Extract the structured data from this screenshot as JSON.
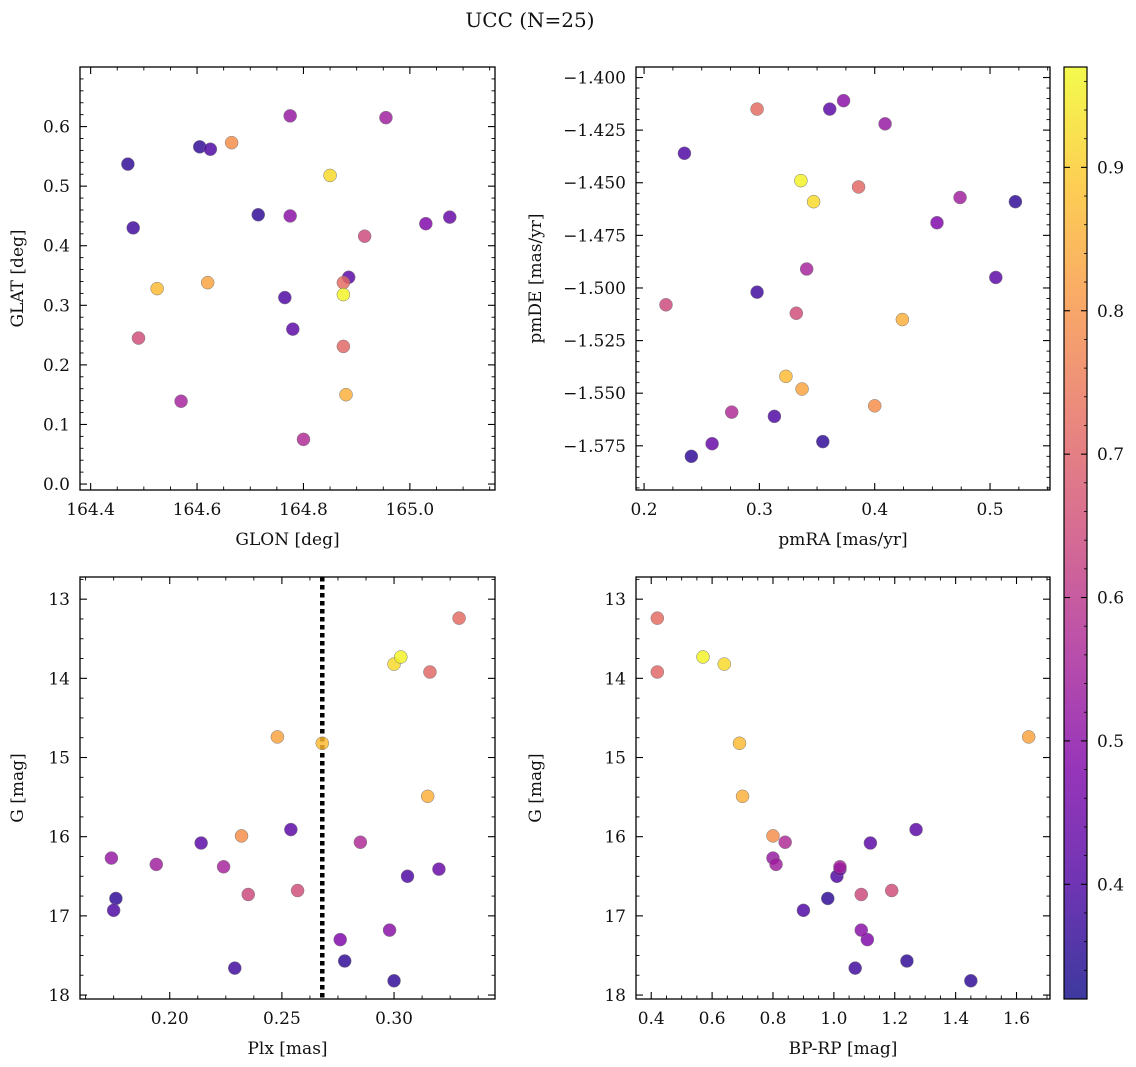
{
  "figure": {
    "title": "UCC (N=25)"
  },
  "chart_data": [
    {
      "type": "scatter",
      "xlabel": "GLON [deg]",
      "ylabel": "GLAT [deg]",
      "xlim": [
        164.38,
        165.16
      ],
      "ylim": [
        -0.01,
        0.7
      ],
      "xticks": [
        "164.4",
        "164.6",
        "164.8",
        "165.0"
      ],
      "yticks": [
        "0.0",
        "0.1",
        "0.2",
        "0.3",
        "0.4",
        "0.5",
        "0.6"
      ]
    },
    {
      "type": "scatter",
      "xlabel": "pmRA [mas/yr]",
      "ylabel": "pmDE [mas/yr]",
      "xlim": [
        0.193,
        0.552
      ],
      "ylim": [
        -1.596,
        -1.395
      ],
      "xticks": [
        "0.2",
        "0.3",
        "0.4",
        "0.5"
      ],
      "yticks": [
        "−1.400",
        "−1.425",
        "−1.450",
        "−1.475",
        "−1.500",
        "−1.525",
        "−1.550",
        "−1.575"
      ]
    },
    {
      "type": "scatter",
      "xlabel": "Plx [mas]",
      "ylabel": "G [mag]",
      "xlim": [
        0.16,
        0.345
      ],
      "ylim": [
        18.05,
        12.72
      ],
      "y_inverted": true,
      "reference_line": {
        "x": 0.268,
        "style": "dotted",
        "color": "#000000"
      },
      "xticks": [
        "0.20",
        "0.25",
        "0.30"
      ],
      "yticks": [
        "13",
        "14",
        "15",
        "16",
        "17",
        "18"
      ]
    },
    {
      "type": "scatter",
      "xlabel": "BP-RP [mag]",
      "ylabel": "G [mag]",
      "xlim": [
        0.35,
        1.71
      ],
      "ylim": [
        18.05,
        12.72
      ],
      "y_inverted": true,
      "xticks": [
        "0.4",
        "0.6",
        "0.8",
        "1.0",
        "1.2",
        "1.4",
        "1.6"
      ],
      "yticks": [
        "13",
        "14",
        "15",
        "16",
        "17",
        "18"
      ]
    }
  ],
  "stars": [
    {
      "glon": 164.47,
      "glat": 0.537,
      "pmra": 0.241,
      "pmde": -1.58,
      "plx": 0.176,
      "bprp": 0.98,
      "g": 16.78,
      "c": 0.36
    },
    {
      "glon": 164.48,
      "glat": 0.43,
      "pmra": 0.298,
      "pmde": -1.502,
      "plx": 0.229,
      "bprp": 1.07,
      "g": 17.66,
      "c": 0.38
    },
    {
      "glon": 164.605,
      "glat": 0.566,
      "pmra": 0.355,
      "pmde": -1.573,
      "plx": 0.3,
      "bprp": 1.45,
      "g": 17.82,
      "c": 0.36
    },
    {
      "glon": 164.625,
      "glat": 0.562,
      "pmra": 0.235,
      "pmde": -1.436,
      "plx": 0.175,
      "bprp": 0.9,
      "g": 16.93,
      "c": 0.4
    },
    {
      "glon": 164.715,
      "glat": 0.452,
      "pmra": 0.522,
      "pmde": -1.459,
      "plx": 0.278,
      "bprp": 1.24,
      "g": 17.57,
      "c": 0.36
    },
    {
      "glon": 164.765,
      "glat": 0.313,
      "pmra": 0.313,
      "pmde": -1.561,
      "plx": 0.306,
      "bprp": 1.01,
      "g": 16.5,
      "c": 0.4
    },
    {
      "glon": 164.78,
      "glat": 0.26,
      "pmra": 0.505,
      "pmde": -1.495,
      "plx": 0.214,
      "bprp": 1.12,
      "g": 16.08,
      "c": 0.42
    },
    {
      "glon": 164.885,
      "glat": 0.347,
      "pmra": 0.361,
      "pmde": -1.415,
      "plx": 0.254,
      "bprp": 1.27,
      "g": 15.91,
      "c": 0.42
    },
    {
      "glon": 165.075,
      "glat": 0.448,
      "pmra": 0.259,
      "pmde": -1.574,
      "plx": 0.32,
      "bprp": 1.02,
      "g": 16.41,
      "c": 0.44
    },
    {
      "glon": 165.03,
      "glat": 0.437,
      "pmra": 0.454,
      "pmde": -1.469,
      "plx": 0.276,
      "bprp": 1.11,
      "g": 17.3,
      "c": 0.48
    },
    {
      "glon": 164.775,
      "glat": 0.45,
      "pmra": 0.373,
      "pmde": -1.411,
      "plx": 0.298,
      "bprp": 1.09,
      "g": 17.18,
      "c": 0.5
    },
    {
      "glon": 164.775,
      "glat": 0.618,
      "pmra": 0.409,
      "pmde": -1.422,
      "plx": 0.174,
      "bprp": 0.8,
      "g": 16.27,
      "c": 0.52
    },
    {
      "glon": 164.955,
      "glat": 0.615,
      "pmra": 0.474,
      "pmde": -1.457,
      "plx": 0.194,
      "bprp": 0.81,
      "g": 16.35,
      "c": 0.54
    },
    {
      "glon": 164.57,
      "glat": 0.139,
      "pmra": 0.341,
      "pmde": -1.491,
      "plx": 0.224,
      "bprp": 1.02,
      "g": 16.38,
      "c": 0.55
    },
    {
      "glon": 164.8,
      "glat": 0.075,
      "pmra": 0.276,
      "pmde": -1.559,
      "plx": 0.285,
      "bprp": 0.84,
      "g": 16.07,
      "c": 0.57
    },
    {
      "glon": 164.915,
      "glat": 0.416,
      "pmra": 0.219,
      "pmde": -1.508,
      "plx": 0.235,
      "bprp": 1.09,
      "g": 16.73,
      "c": 0.64
    },
    {
      "glon": 164.49,
      "glat": 0.245,
      "pmra": 0.332,
      "pmde": -1.512,
      "plx": 0.257,
      "bprp": 1.19,
      "g": 16.68,
      "c": 0.65
    },
    {
      "glon": 164.875,
      "glat": 0.231,
      "pmra": 0.386,
      "pmde": -1.452,
      "plx": 0.316,
      "bprp": 0.42,
      "g": 13.92,
      "c": 0.71
    },
    {
      "glon": 164.875,
      "glat": 0.338,
      "pmra": 0.298,
      "pmde": -1.415,
      "plx": 0.329,
      "bprp": 0.42,
      "g": 13.24,
      "c": 0.72
    },
    {
      "glon": 164.665,
      "glat": 0.573,
      "pmra": 0.4,
      "pmde": -1.556,
      "plx": 0.232,
      "bprp": 0.8,
      "g": 15.99,
      "c": 0.79
    },
    {
      "glon": 164.62,
      "glat": 0.338,
      "pmra": 0.337,
      "pmde": -1.548,
      "plx": 0.248,
      "bprp": 1.64,
      "g": 14.74,
      "c": 0.83
    },
    {
      "glon": 164.88,
      "glat": 0.15,
      "pmra": 0.424,
      "pmde": -1.515,
      "plx": 0.315,
      "bprp": 0.7,
      "g": 15.49,
      "c": 0.85
    },
    {
      "glon": 164.525,
      "glat": 0.328,
      "pmra": 0.323,
      "pmde": -1.542,
      "plx": 0.268,
      "bprp": 0.69,
      "g": 14.82,
      "c": 0.87
    },
    {
      "glon": 164.85,
      "glat": 0.518,
      "pmra": 0.347,
      "pmde": -1.459,
      "plx": 0.3,
      "bprp": 0.64,
      "g": 13.82,
      "c": 0.92
    },
    {
      "glon": 164.875,
      "glat": 0.318,
      "pmra": 0.336,
      "pmde": -1.449,
      "plx": 0.303,
      "bprp": 0.57,
      "g": 13.73,
      "c": 0.96
    }
  ],
  "colorbar": {
    "cmap": "plasma",
    "range": [
      0.32,
      0.97
    ],
    "ticks": [
      {
        "value": 0.4,
        "label": "0.4"
      },
      {
        "value": 0.5,
        "label": "0.5"
      },
      {
        "value": 0.6,
        "label": "0.6"
      },
      {
        "value": 0.7,
        "label": "0.7"
      },
      {
        "value": 0.8,
        "label": "0.8"
      },
      {
        "value": 0.9,
        "label": "0.9"
      }
    ]
  }
}
